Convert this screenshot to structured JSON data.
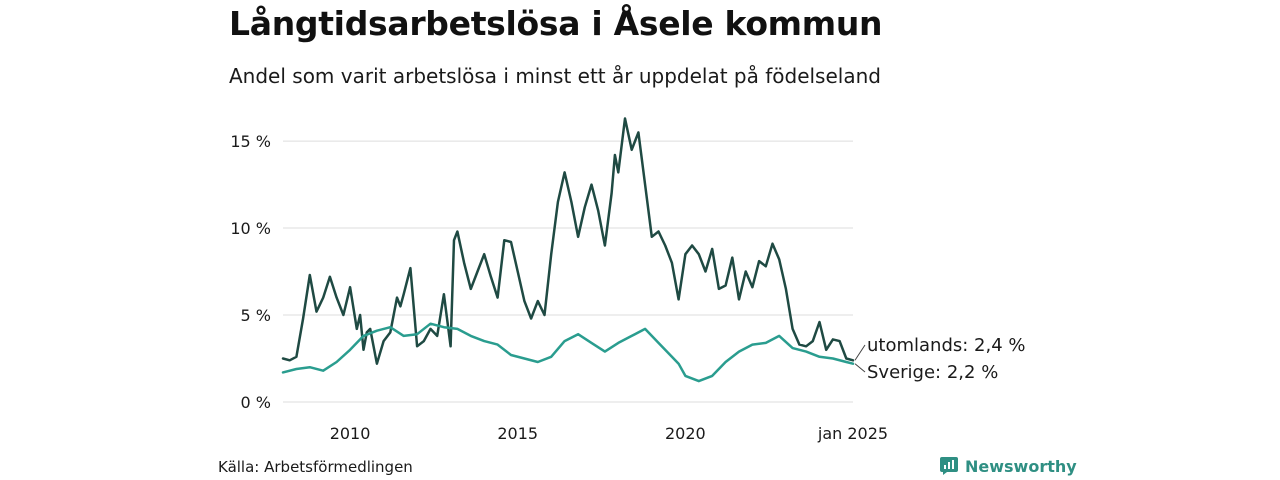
{
  "title": "Långtidsarbetslösa i Åsele kommun",
  "subtitle": "Andel som varit arbetslösa i minst ett år uppdelat på födelseland",
  "source": "Källa: Arbetsförmedlingen",
  "brand": {
    "name": "Newsworthy"
  },
  "colors": {
    "utomlands": "#1f4a43",
    "sverige": "#2a9d8f",
    "grid": "#dddddd",
    "brand": "#2f8f83"
  },
  "chart_data": {
    "type": "line",
    "title": "Långtidsarbetslösa i Åsele kommun",
    "subtitle": "Andel som varit arbetslösa i minst ett år uppdelat på födelseland",
    "y_ticks": [
      0,
      5,
      10,
      15
    ],
    "y_tick_labels": [
      "0 %",
      "5 %",
      "10 %",
      "15 %"
    ],
    "ylim": [
      0,
      16.5
    ],
    "x_ticks": [
      2010,
      2015,
      2020,
      2025.0
    ],
    "x_tick_labels": [
      "2010",
      "2015",
      "2020",
      "jan 2025"
    ],
    "xlim": [
      2008.0,
      2025.0
    ],
    "grid": true,
    "series": [
      {
        "name": "utomlands",
        "end_label": "utomlands: 2,4 %",
        "x": [
          2008.0,
          2008.2,
          2008.4,
          2008.6,
          2008.8,
          2009.0,
          2009.1,
          2009.2,
          2009.4,
          2009.6,
          2009.8,
          2010.0,
          2010.2,
          2010.3,
          2010.4,
          2010.5,
          2010.6,
          2010.8,
          2011.0,
          2011.2,
          2011.4,
          2011.5,
          2011.6,
          2011.8,
          2012.0,
          2012.2,
          2012.4,
          2012.6,
          2012.8,
          2013.0,
          2013.1,
          2013.2,
          2013.4,
          2013.6,
          2013.8,
          2014.0,
          2014.2,
          2014.4,
          2014.6,
          2014.8,
          2015.0,
          2015.2,
          2015.4,
          2015.6,
          2015.8,
          2016.0,
          2016.2,
          2016.4,
          2016.6,
          2016.8,
          2017.0,
          2017.2,
          2017.4,
          2017.6,
          2017.8,
          2017.9,
          2018.0,
          2018.2,
          2018.4,
          2018.6,
          2018.8,
          2019.0,
          2019.2,
          2019.4,
          2019.6,
          2019.8,
          2020.0,
          2020.2,
          2020.4,
          2020.6,
          2020.8,
          2021.0,
          2021.2,
          2021.4,
          2021.6,
          2021.8,
          2022.0,
          2022.2,
          2022.4,
          2022.6,
          2022.8,
          2023.0,
          2023.2,
          2023.4,
          2023.6,
          2023.8,
          2024.0,
          2024.2,
          2024.4,
          2024.6,
          2024.8,
          2025.0
        ],
        "y": [
          2.5,
          2.4,
          2.6,
          4.8,
          7.3,
          5.2,
          5.6,
          6.0,
          7.2,
          6.0,
          5.0,
          6.6,
          4.2,
          5.0,
          3.0,
          4.0,
          4.2,
          2.2,
          3.5,
          4.0,
          6.0,
          5.5,
          6.2,
          7.7,
          3.2,
          3.5,
          4.2,
          3.8,
          6.2,
          3.2,
          9.3,
          9.8,
          8.0,
          6.5,
          7.5,
          8.5,
          7.2,
          6.0,
          9.3,
          9.2,
          7.5,
          5.8,
          4.8,
          5.8,
          5.0,
          8.5,
          11.5,
          13.2,
          11.5,
          9.5,
          11.2,
          12.5,
          11.0,
          9.0,
          12.0,
          14.2,
          13.2,
          16.3,
          14.5,
          15.5,
          12.5,
          9.5,
          9.8,
          9.0,
          8.0,
          5.9,
          8.5,
          9.0,
          8.5,
          7.5,
          8.8,
          6.5,
          6.7,
          8.3,
          5.9,
          7.5,
          6.6,
          8.1,
          7.8,
          9.1,
          8.2,
          6.5,
          4.2,
          3.3,
          3.2,
          3.5,
          4.6,
          3.0,
          3.6,
          3.5,
          2.5,
          2.4
        ],
        "color": "#1f4a43"
      },
      {
        "name": "Sverige",
        "end_label": "Sverige: 2,2 %",
        "x": [
          2008.0,
          2008.4,
          2008.8,
          2009.2,
          2009.6,
          2010.0,
          2010.4,
          2010.8,
          2011.2,
          2011.6,
          2012.0,
          2012.4,
          2012.8,
          2013.2,
          2013.6,
          2014.0,
          2014.4,
          2014.8,
          2015.2,
          2015.6,
          2016.0,
          2016.4,
          2016.8,
          2017.2,
          2017.6,
          2018.0,
          2018.2,
          2018.4,
          2018.8,
          2019.2,
          2019.6,
          2019.8,
          2020.0,
          2020.4,
          2020.8,
          2021.2,
          2021.6,
          2022.0,
          2022.4,
          2022.8,
          2023.2,
          2023.6,
          2024.0,
          2024.4,
          2024.8,
          2025.0
        ],
        "y": [
          1.7,
          1.9,
          2.0,
          1.8,
          2.3,
          3.0,
          3.8,
          4.1,
          4.3,
          3.8,
          3.9,
          4.5,
          4.3,
          4.2,
          3.8,
          3.5,
          3.3,
          2.7,
          2.5,
          2.3,
          2.6,
          3.5,
          3.9,
          3.4,
          2.9,
          3.4,
          3.6,
          3.8,
          4.2,
          3.4,
          2.6,
          2.2,
          1.5,
          1.2,
          1.5,
          2.3,
          2.9,
          3.3,
          3.4,
          3.8,
          3.1,
          2.9,
          2.6,
          2.5,
          2.3,
          2.2
        ],
        "color": "#2a9d8f"
      }
    ]
  }
}
